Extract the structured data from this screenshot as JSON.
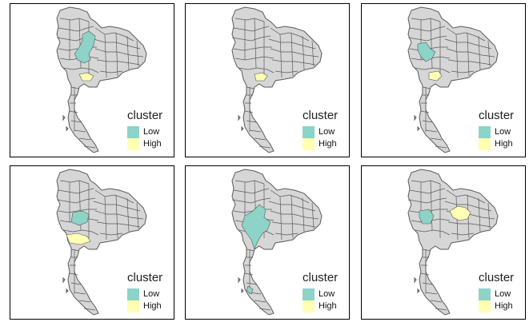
{
  "legend": {
    "title": "cluster",
    "items": [
      {
        "label": "Low",
        "color": "#8dd3c7"
      },
      {
        "label": "High",
        "color": "#ffffb3"
      }
    ]
  },
  "colors": {
    "province_fill": "#d6d6d6",
    "province_border": "#5a5a5a",
    "panel_border": "#000000"
  },
  "panels": [
    {
      "id": 1,
      "clusters": {
        "low": "northern provinces",
        "high": "central (Bangkok area)"
      }
    },
    {
      "id": 2,
      "clusters": {
        "low": "",
        "high": "central (Bangkok area)"
      }
    },
    {
      "id": 3,
      "clusters": {
        "low": "upper-central provinces",
        "high": "central (Bangkok area)"
      }
    },
    {
      "id": 4,
      "clusters": {
        "low": "lower-northern provinces",
        "high": "western-central provinces"
      }
    },
    {
      "id": 5,
      "clusters": {
        "low": "western-central and southern provinces",
        "high": ""
      }
    },
    {
      "id": 6,
      "clusters": {
        "low": "lower-northern provinces",
        "high": "northeastern provinces"
      }
    }
  ]
}
